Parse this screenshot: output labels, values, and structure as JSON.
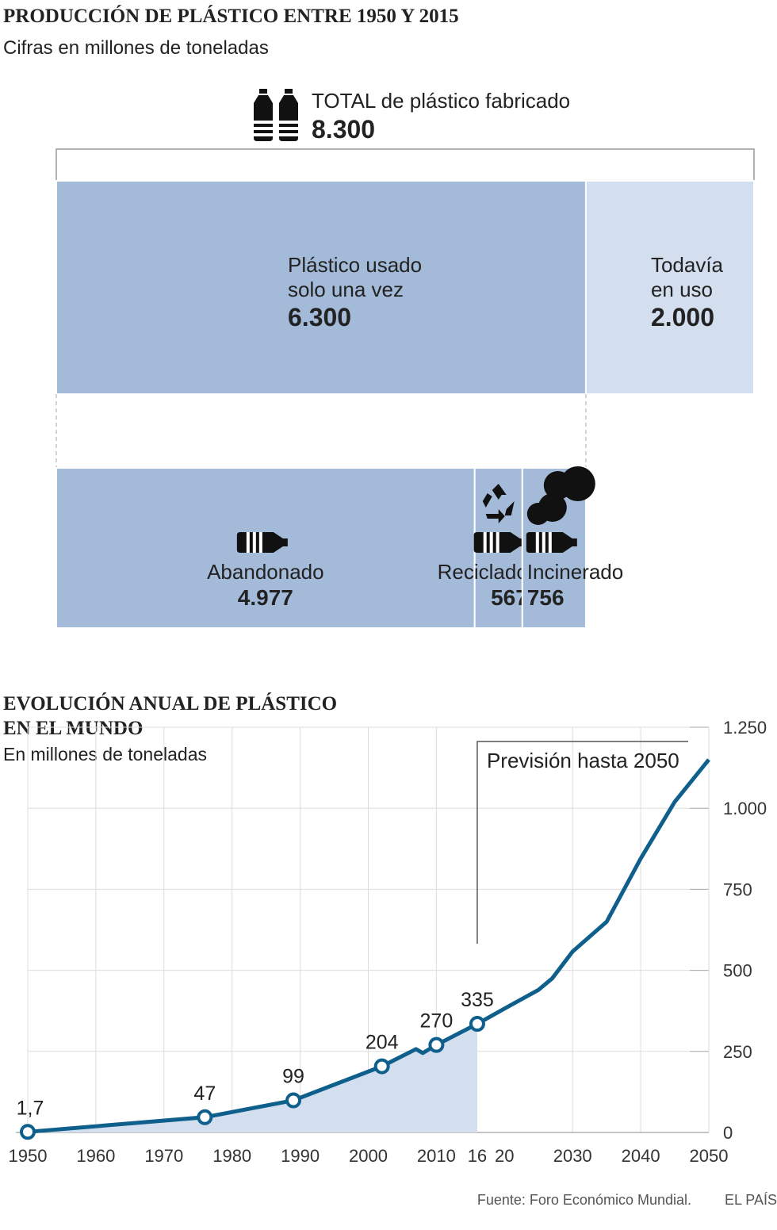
{
  "chart_data": [
    {
      "type": "blocks",
      "title": "PRODUCCIÓN DE PLÁSTICO ENTRE 1950 Y 2015",
      "subtitle": "Cifras en millones de toneladas",
      "total": {
        "label": "TOTAL de plástico fabricado",
        "value": 8300,
        "value_label": "8.300"
      },
      "parts": [
        {
          "label": [
            "Plástico usado",
            "solo una vez"
          ],
          "value": 6300,
          "value_label": "6.300",
          "color": "#a3bbd8"
        },
        {
          "label": [
            "Todavía",
            "en uso"
          ],
          "value": 2000,
          "value_label": "2.000",
          "color": "#d3dfef"
        }
      ],
      "subparts": [
        {
          "label": "Abandonado",
          "value": 4977,
          "value_label": "4.977",
          "color": "#a3bbd8"
        },
        {
          "label": "Reciclado",
          "value": 567,
          "value_label": "567",
          "color": "#a3bbd8"
        },
        {
          "label": "Incinerado",
          "value": 756,
          "value_label": "756",
          "color": "#a3bbd8"
        }
      ]
    },
    {
      "type": "line",
      "title": [
        "EVOLUCIÓN ANUAL DE PLÁSTICO",
        "EN EL MUNDO"
      ],
      "subtitle": "En millones de toneladas",
      "x": [
        1950,
        1976,
        1989,
        2002,
        2007,
        2008,
        2010,
        2016,
        2020,
        2025,
        2027,
        2030,
        2035,
        2040,
        2045,
        2050
      ],
      "series": [
        {
          "color": "#0f5f8c",
          "values": [
            1.7,
            47,
            99,
            204,
            257,
            245,
            270,
            335,
            382,
            440,
            475,
            558,
            650,
            845,
            1020,
            1150
          ],
          "value_labels": [
            "1,7",
            "47",
            "99",
            "204",
            null,
            null,
            "270",
            "335",
            null,
            null,
            null,
            null,
            null,
            null,
            null,
            null
          ]
        }
      ],
      "area_color": "#d3dfef",
      "forecast": {
        "label": "Previsión hasta 2050",
        "start": 2016
      },
      "xlim": [
        1950,
        2050
      ],
      "xticks": [
        1950,
        1960,
        1970,
        1980,
        1990,
        2000,
        2010,
        {
          "value": 2016,
          "label": "16"
        },
        {
          "value": 2020,
          "label": "20"
        },
        2030,
        2040,
        2050
      ],
      "ylim": [
        0,
        1250
      ],
      "yticks": [
        0,
        250,
        500,
        750,
        {
          "value": 1000,
          "label": "1.000"
        },
        {
          "value": 1250,
          "label": "1.250"
        }
      ],
      "grid": true,
      "source": "Fuente: Foro Económico Mundial.",
      "credit": "EL PAÍS"
    }
  ]
}
